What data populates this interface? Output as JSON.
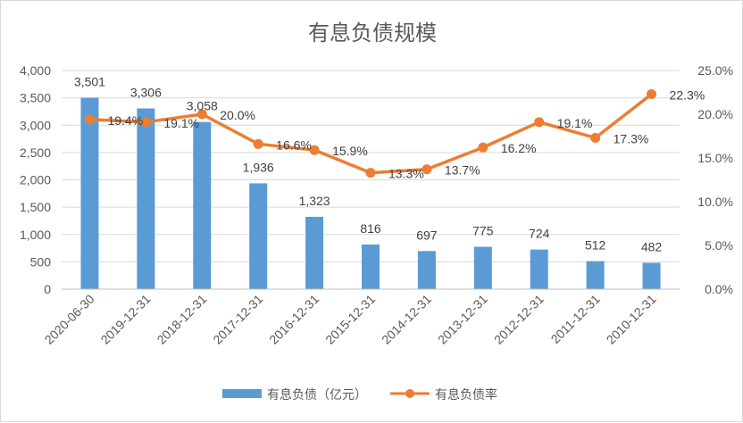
{
  "chart_data": {
    "type": "bar+line",
    "title": "有息负债规模",
    "categories": [
      "2020-06-30",
      "2019-12-31",
      "2018-12-31",
      "2017-12-31",
      "2016-12-31",
      "2015-12-31",
      "2014-12-31",
      "2013-12-31",
      "2012-12-31",
      "2011-12-31",
      "2010-12-31"
    ],
    "series": [
      {
        "name": "有息负债（亿元）",
        "type": "bar",
        "axis": "left",
        "color": "#5B9BD5",
        "values": [
          3501,
          3306,
          3058,
          1936,
          1323,
          816,
          697,
          775,
          724,
          512,
          482
        ],
        "labels": [
          "3,501",
          "3,306",
          "3,058",
          "1,936",
          "1,323",
          "816",
          "697",
          "775",
          "724",
          "512",
          "482"
        ]
      },
      {
        "name": "有息负债率",
        "type": "line",
        "axis": "right",
        "color": "#ED7D31",
        "values": [
          19.4,
          19.1,
          20.0,
          16.6,
          15.9,
          13.3,
          13.7,
          16.2,
          19.1,
          17.3,
          22.3
        ],
        "labels": [
          "19.4%",
          "19.1%",
          "20.0%",
          "16.6%",
          "15.9%",
          "13.3%",
          "13.7%",
          "16.2%",
          "19.1%",
          "17.3%",
          "22.3%"
        ]
      }
    ],
    "y_left": {
      "range": [
        0,
        4000
      ],
      "ticks": [
        "0",
        "500",
        "1,000",
        "1,500",
        "2,000",
        "2,500",
        "3,000",
        "3,500",
        "4,000"
      ]
    },
    "y_right": {
      "range": [
        0,
        25
      ],
      "ticks": [
        "0.0%",
        "5.0%",
        "10.0%",
        "15.0%",
        "20.0%",
        "25.0%"
      ]
    },
    "grid": true,
    "legend_position": "bottom"
  }
}
